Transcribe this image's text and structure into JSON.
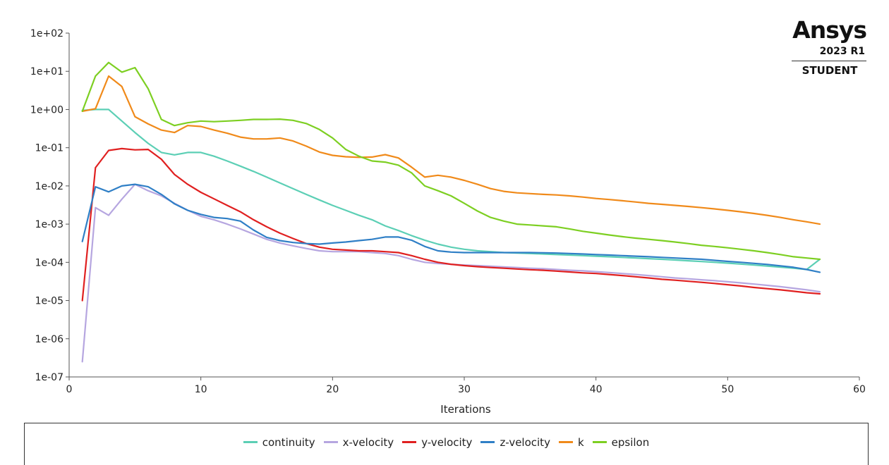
{
  "brand": {
    "name": "Ansys",
    "version": "2023 R1",
    "edition": "STUDENT"
  },
  "chart_data": {
    "type": "line",
    "title": "",
    "xlabel": "Iterations",
    "ylabel": "",
    "x_scale": "linear",
    "y_scale": "log",
    "xlim": [
      0,
      60
    ],
    "ylim": [
      1e-07,
      100
    ],
    "x_ticks": [
      "0",
      "10",
      "20",
      "30",
      "40",
      "50",
      "60"
    ],
    "y_ticks": [
      "1e-07",
      "1e-06",
      "1e-05",
      "1e-04",
      "1e-03",
      "1e-02",
      "1e-01",
      "1e+00",
      "1e+01",
      "1e+02"
    ],
    "grid": false,
    "legend_position": "bottom",
    "x": [
      1,
      2,
      3,
      4,
      5,
      6,
      7,
      8,
      9,
      10,
      11,
      12,
      13,
      14,
      15,
      16,
      17,
      18,
      19,
      20,
      21,
      22,
      23,
      24,
      25,
      26,
      27,
      28,
      29,
      30,
      31,
      32,
      33,
      34,
      35,
      36,
      37,
      38,
      39,
      40,
      41,
      42,
      43,
      44,
      45,
      46,
      47,
      48,
      49,
      50,
      51,
      52,
      53,
      54,
      55,
      56,
      57
    ],
    "series": [
      {
        "name": "continuity",
        "color": "#5ccfb5",
        "values": [
          0.95,
          1.0,
          1.0,
          0.5,
          0.25,
          0.13,
          0.075,
          0.065,
          0.075,
          0.075,
          0.06,
          0.045,
          0.033,
          0.024,
          0.017,
          0.012,
          0.0085,
          0.006,
          0.0043,
          0.0031,
          0.0023,
          0.0017,
          0.0013,
          0.0009,
          0.00068,
          0.0005,
          0.00038,
          0.0003,
          0.00025,
          0.00022,
          0.0002,
          0.00019,
          0.00018,
          0.000175,
          0.00017,
          0.000165,
          0.00016,
          0.000155,
          0.00015,
          0.000145,
          0.00014,
          0.000135,
          0.00013,
          0.000125,
          0.00012,
          0.000115,
          0.00011,
          0.000105,
          0.0001,
          9.5e-05,
          9e-05,
          8.5e-05,
          8e-05,
          7.5e-05,
          7e-05,
          6.5e-05,
          0.00012
        ]
      },
      {
        "name": "x-velocity",
        "color": "#b6a6e0",
        "values": [
          2.5e-07,
          0.0027,
          0.0017,
          0.0045,
          0.011,
          0.0075,
          0.0055,
          0.0035,
          0.0023,
          0.0016,
          0.0013,
          0.001,
          0.00075,
          0.00055,
          0.0004,
          0.00032,
          0.00027,
          0.00023,
          0.0002,
          0.00019,
          0.00019,
          0.00019,
          0.00018,
          0.00017,
          0.00015,
          0.00012,
          0.0001,
          9.3e-05,
          8.9e-05,
          8.5e-05,
          8.2e-05,
          7.9e-05,
          7.6e-05,
          7.3e-05,
          7e-05,
          6.8e-05,
          6.5e-05,
          6.2e-05,
          6e-05,
          5.7e-05,
          5.4e-05,
          5.1e-05,
          4.8e-05,
          4.5e-05,
          4.2e-05,
          3.9e-05,
          3.7e-05,
          3.5e-05,
          3.3e-05,
          3.1e-05,
          2.9e-05,
          2.7e-05,
          2.5e-05,
          2.3e-05,
          2.1e-05,
          1.9e-05,
          1.7e-05
        ]
      },
      {
        "name": "y-velocity",
        "color": "#e02020",
        "values": [
          1e-05,
          0.03,
          0.085,
          0.095,
          0.088,
          0.09,
          0.05,
          0.02,
          0.011,
          0.0068,
          0.0046,
          0.0031,
          0.0021,
          0.0013,
          0.00085,
          0.00058,
          0.00042,
          0.00031,
          0.00025,
          0.00022,
          0.00021,
          0.0002,
          0.0002,
          0.00019,
          0.00018,
          0.00015,
          0.00012,
          0.0001,
          8.9e-05,
          8.2e-05,
          7.7e-05,
          7.3e-05,
          7e-05,
          6.7e-05,
          6.4e-05,
          6.2e-05,
          5.9e-05,
          5.6e-05,
          5.3e-05,
          5.1e-05,
          4.8e-05,
          4.5e-05,
          4.2e-05,
          3.9e-05,
          3.6e-05,
          3.4e-05,
          3.2e-05,
          3e-05,
          2.8e-05,
          2.6e-05,
          2.4e-05,
          2.2e-05,
          2.05e-05,
          1.9e-05,
          1.75e-05,
          1.6e-05,
          1.5e-05
        ]
      },
      {
        "name": "z-velocity",
        "color": "#2f7fc6",
        "values": [
          0.00035,
          0.0095,
          0.007,
          0.01,
          0.011,
          0.0095,
          0.006,
          0.0034,
          0.0023,
          0.0018,
          0.0015,
          0.0014,
          0.0012,
          0.0007,
          0.00045,
          0.00037,
          0.00033,
          0.00031,
          0.0003,
          0.00032,
          0.00034,
          0.00037,
          0.0004,
          0.00046,
          0.00046,
          0.00038,
          0.00026,
          0.0002,
          0.000185,
          0.00018,
          0.00018,
          0.00018,
          0.00018,
          0.00018,
          0.00018,
          0.000178,
          0.000175,
          0.00017,
          0.000165,
          0.00016,
          0.000155,
          0.00015,
          0.000145,
          0.00014,
          0.000135,
          0.00013,
          0.000125,
          0.00012,
          0.000113,
          0.000106,
          0.0001,
          9.4e-05,
          8.8e-05,
          8.1e-05,
          7.4e-05,
          6.5e-05,
          5.5e-05
        ]
      },
      {
        "name": "k",
        "color": "#f08a1a",
        "values": [
          0.9,
          1.05,
          7.5,
          4.0,
          0.65,
          0.42,
          0.29,
          0.25,
          0.38,
          0.36,
          0.29,
          0.24,
          0.19,
          0.17,
          0.17,
          0.18,
          0.15,
          0.11,
          0.077,
          0.063,
          0.058,
          0.056,
          0.057,
          0.066,
          0.054,
          0.031,
          0.017,
          0.019,
          0.017,
          0.014,
          0.011,
          0.0085,
          0.0072,
          0.0066,
          0.0063,
          0.006,
          0.0058,
          0.0055,
          0.0051,
          0.0047,
          0.0044,
          0.0041,
          0.0038,
          0.0035,
          0.0033,
          0.0031,
          0.0029,
          0.0027,
          0.0025,
          0.0023,
          0.0021,
          0.0019,
          0.0017,
          0.0015,
          0.0013,
          0.00115,
          0.001
        ]
      },
      {
        "name": "epsilon",
        "color": "#7dcf22",
        "values": [
          0.9,
          7.5,
          17.0,
          9.5,
          12.5,
          3.5,
          0.55,
          0.38,
          0.45,
          0.5,
          0.48,
          0.5,
          0.52,
          0.55,
          0.55,
          0.56,
          0.52,
          0.43,
          0.3,
          0.18,
          0.09,
          0.06,
          0.045,
          0.042,
          0.035,
          0.022,
          0.01,
          0.0075,
          0.0055,
          0.0035,
          0.0022,
          0.0015,
          0.0012,
          0.001,
          0.00095,
          0.0009,
          0.00085,
          0.00075,
          0.00065,
          0.00058,
          0.00052,
          0.00047,
          0.00043,
          0.0004,
          0.00037,
          0.00034,
          0.00031,
          0.00028,
          0.00026,
          0.00024,
          0.00022,
          0.0002,
          0.00018,
          0.00016,
          0.00014,
          0.00013,
          0.00012
        ]
      }
    ]
  }
}
